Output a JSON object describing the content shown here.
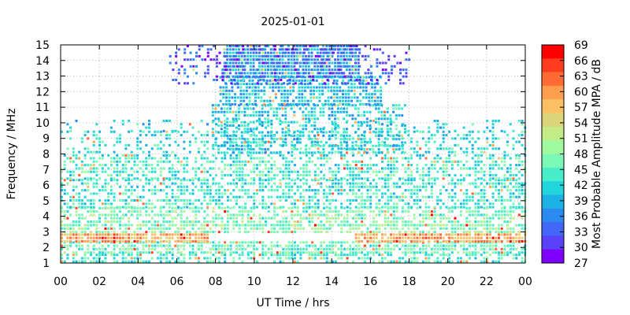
{
  "chart_data": {
    "type": "heatmap",
    "title": "2025-01-01",
    "xlabel": "UT Time / hrs",
    "ylabel": "Frequency / MHz",
    "xlim": [
      0,
      24
    ],
    "ylim": [
      1,
      15
    ],
    "x_ticks": [
      "00",
      "02",
      "04",
      "06",
      "08",
      "10",
      "12",
      "14",
      "16",
      "18",
      "20",
      "22",
      "00"
    ],
    "y_ticks": [
      "1",
      "2",
      "3",
      "4",
      "5",
      "6",
      "7",
      "8",
      "9",
      "10",
      "11",
      "12",
      "13",
      "14",
      "15"
    ],
    "grid": true,
    "colorbar": {
      "label": "Most Probable Amplitude MPA / dB",
      "min": 27,
      "max": 69,
      "ticks": [
        "69",
        "66",
        "63",
        "60",
        "57",
        "54",
        "51",
        "48",
        "45",
        "42",
        "39",
        "36",
        "33",
        "30",
        "27"
      ],
      "colors": [
        "#ff0000",
        "#ff3c1e",
        "#ff6b34",
        "#ff9e4f",
        "#fcc064",
        "#dcd579",
        "#c4ec86",
        "#9ff99f",
        "#7cfab5",
        "#48edc9",
        "#22d4db",
        "#1cb2e6",
        "#2a8af0",
        "#4266f5",
        "#5a42f8",
        "#8000ff"
      ]
    },
    "bands": [
      {
        "f_lo": 1.0,
        "f_hi": 1.6,
        "t0": 0,
        "t1": 24,
        "level": 44,
        "density": 0.55
      },
      {
        "f_lo": 1.6,
        "f_hi": 2.4,
        "t0": 0,
        "t1": 24,
        "level": 46,
        "density": 0.7
      },
      {
        "f_lo": 2.4,
        "f_hi": 2.9,
        "t0": 0,
        "t1": 7.6,
        "level": 60,
        "density": 0.9
      },
      {
        "f_lo": 2.4,
        "f_hi": 2.9,
        "t0": 15.2,
        "t1": 24,
        "level": 60,
        "density": 0.85
      },
      {
        "f_lo": 2.9,
        "f_hi": 3.5,
        "t0": 0,
        "t1": 24,
        "level": 48,
        "density": 0.6
      },
      {
        "f_lo": 3.5,
        "f_hi": 4.6,
        "t0": 0,
        "t1": 24,
        "level": 47,
        "density": 0.6
      },
      {
        "f_lo": 4.6,
        "f_hi": 6.4,
        "t0": 0,
        "t1": 24,
        "level": 43,
        "density": 0.55
      },
      {
        "f_lo": 6.4,
        "f_hi": 7.8,
        "t0": 0,
        "t1": 24,
        "level": 44,
        "density": 0.5
      },
      {
        "f_lo": 7.8,
        "f_hi": 9.5,
        "t0": 0,
        "t1": 24,
        "level": 42,
        "density": 0.35
      },
      {
        "f_lo": 9.5,
        "f_hi": 10.2,
        "t0": 0,
        "t1": 24,
        "level": 41,
        "density": 0.15
      },
      {
        "f_lo": 8.0,
        "f_hi": 11.2,
        "t0": 7.8,
        "t1": 17.8,
        "level": 41,
        "density": 0.55
      },
      {
        "f_lo": 11.2,
        "f_hi": 13.0,
        "t0": 8.2,
        "t1": 16.6,
        "level": 39,
        "density": 0.75
      },
      {
        "f_lo": 13.0,
        "f_hi": 15.0,
        "t0": 8.4,
        "t1": 15.4,
        "level": 36,
        "density": 0.85
      },
      {
        "f_lo": 12.5,
        "f_hi": 15.0,
        "t0": 5.6,
        "t1": 18.0,
        "level": 31,
        "density": 0.3
      }
    ]
  }
}
